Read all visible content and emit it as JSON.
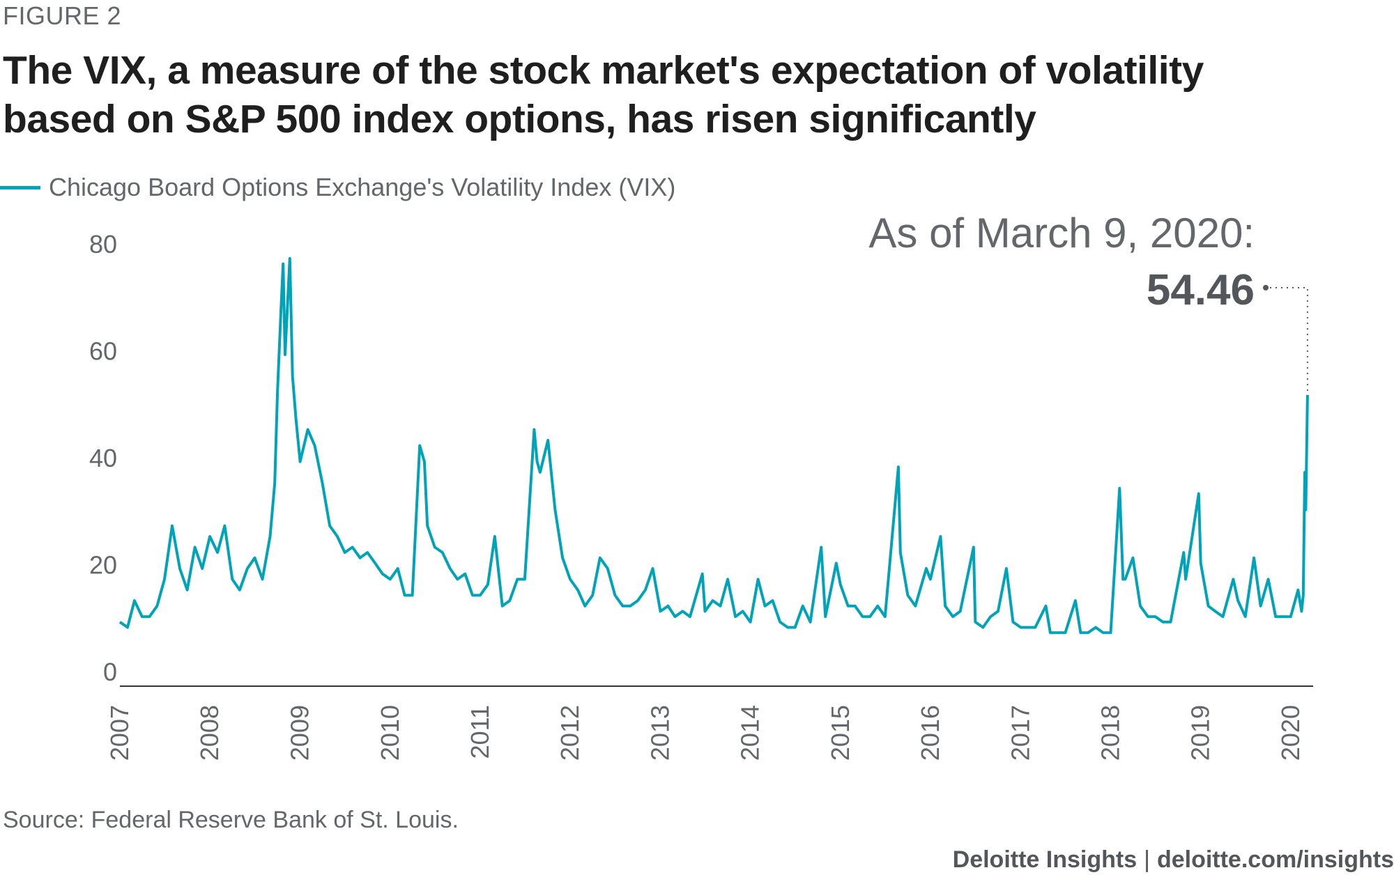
{
  "figure_label": "FIGURE 2",
  "title": "The VIX, a measure of the stock market's expectation of volatility based on S&P 500 index options, has risen significantly",
  "legend_label": "Chicago Board Options Exchange's Volatility Index (VIX)",
  "source": "Source: Federal Reserve Bank of St. Louis.",
  "footer": {
    "brand": "Deloitte Insights",
    "separator": "|",
    "url": "deloitte.com/insights"
  },
  "colors": {
    "series": "#00a3b8",
    "axis": "#333333",
    "text": "#63666a",
    "title": "#1f1f1f"
  },
  "chart_data": {
    "type": "line",
    "annotation": {
      "label": "As of March 9, 2020:",
      "value": "54.46",
      "x": "2020-03-09",
      "y": 54.46
    },
    "xlabel": "",
    "ylabel": "",
    "xlim": [
      "2007-01-01",
      "2020-04-01"
    ],
    "ylim": [
      0,
      85
    ],
    "yticks": [
      0,
      20,
      40,
      60,
      80
    ],
    "xticks": [
      "2007",
      "2008",
      "2009",
      "2010",
      "2011",
      "2012",
      "2013",
      "2014",
      "2015",
      "2016",
      "2017",
      "2018",
      "2019",
      "2020"
    ],
    "grid": false,
    "legend_position": "top-left",
    "series": [
      {
        "name": "Chicago Board Options Exchange's Volatility Index (VIX)",
        "points": [
          [
            "2007-01-01",
            12
          ],
          [
            "2007-02-01",
            11
          ],
          [
            "2007-03-01",
            16
          ],
          [
            "2007-04-01",
            13
          ],
          [
            "2007-05-01",
            13
          ],
          [
            "2007-06-01",
            15
          ],
          [
            "2007-07-01",
            20
          ],
          [
            "2007-08-01",
            30
          ],
          [
            "2007-09-01",
            22
          ],
          [
            "2007-10-01",
            18
          ],
          [
            "2007-11-01",
            26
          ],
          [
            "2007-12-01",
            22
          ],
          [
            "2008-01-01",
            28
          ],
          [
            "2008-02-01",
            25
          ],
          [
            "2008-03-01",
            30
          ],
          [
            "2008-04-01",
            20
          ],
          [
            "2008-05-01",
            18
          ],
          [
            "2008-06-01",
            22
          ],
          [
            "2008-07-01",
            24
          ],
          [
            "2008-08-01",
            20
          ],
          [
            "2008-09-01",
            28
          ],
          [
            "2008-09-20",
            38
          ],
          [
            "2008-10-01",
            55
          ],
          [
            "2008-10-15",
            70
          ],
          [
            "2008-10-24",
            79
          ],
          [
            "2008-11-01",
            62
          ],
          [
            "2008-11-20",
            80
          ],
          [
            "2008-12-01",
            58
          ],
          [
            "2008-12-15",
            50
          ],
          [
            "2009-01-01",
            42
          ],
          [
            "2009-02-01",
            48
          ],
          [
            "2009-03-01",
            45
          ],
          [
            "2009-04-01",
            38
          ],
          [
            "2009-05-01",
            30
          ],
          [
            "2009-06-01",
            28
          ],
          [
            "2009-07-01",
            25
          ],
          [
            "2009-08-01",
            26
          ],
          [
            "2009-09-01",
            24
          ],
          [
            "2009-10-01",
            25
          ],
          [
            "2009-11-01",
            23
          ],
          [
            "2009-12-01",
            21
          ],
          [
            "2010-01-01",
            20
          ],
          [
            "2010-02-01",
            22
          ],
          [
            "2010-03-01",
            17
          ],
          [
            "2010-04-01",
            17
          ],
          [
            "2010-05-01",
            45
          ],
          [
            "2010-05-20",
            42
          ],
          [
            "2010-06-01",
            30
          ],
          [
            "2010-07-01",
            26
          ],
          [
            "2010-08-01",
            25
          ],
          [
            "2010-09-01",
            22
          ],
          [
            "2010-10-01",
            20
          ],
          [
            "2010-11-01",
            21
          ],
          [
            "2010-12-01",
            17
          ],
          [
            "2011-01-01",
            17
          ],
          [
            "2011-02-01",
            19
          ],
          [
            "2011-03-01",
            28
          ],
          [
            "2011-04-01",
            15
          ],
          [
            "2011-05-01",
            16
          ],
          [
            "2011-06-01",
            20
          ],
          [
            "2011-07-01",
            20
          ],
          [
            "2011-08-08",
            48
          ],
          [
            "2011-08-20",
            42
          ],
          [
            "2011-09-01",
            40
          ],
          [
            "2011-10-03",
            46
          ],
          [
            "2011-11-01",
            33
          ],
          [
            "2011-12-01",
            24
          ],
          [
            "2012-01-01",
            20
          ],
          [
            "2012-02-01",
            18
          ],
          [
            "2012-03-01",
            15
          ],
          [
            "2012-04-01",
            17
          ],
          [
            "2012-05-01",
            24
          ],
          [
            "2012-06-01",
            22
          ],
          [
            "2012-07-01",
            17
          ],
          [
            "2012-08-01",
            15
          ],
          [
            "2012-09-01",
            15
          ],
          [
            "2012-10-01",
            16
          ],
          [
            "2012-11-01",
            18
          ],
          [
            "2012-12-01",
            22
          ],
          [
            "2013-01-01",
            14
          ],
          [
            "2013-02-01",
            15
          ],
          [
            "2013-03-01",
            13
          ],
          [
            "2013-04-01",
            14
          ],
          [
            "2013-05-01",
            13
          ],
          [
            "2013-06-20",
            21
          ],
          [
            "2013-07-01",
            14
          ],
          [
            "2013-08-01",
            16
          ],
          [
            "2013-09-01",
            15
          ],
          [
            "2013-10-01",
            20
          ],
          [
            "2013-11-01",
            13
          ],
          [
            "2013-12-01",
            14
          ],
          [
            "2014-01-01",
            12
          ],
          [
            "2014-02-01",
            20
          ],
          [
            "2014-03-01",
            15
          ],
          [
            "2014-04-01",
            16
          ],
          [
            "2014-05-01",
            12
          ],
          [
            "2014-06-01",
            11
          ],
          [
            "2014-07-01",
            11
          ],
          [
            "2014-08-01",
            15
          ],
          [
            "2014-09-01",
            12
          ],
          [
            "2014-10-15",
            26
          ],
          [
            "2014-11-01",
            13
          ],
          [
            "2014-12-15",
            23
          ],
          [
            "2015-01-01",
            19
          ],
          [
            "2015-02-01",
            15
          ],
          [
            "2015-03-01",
            15
          ],
          [
            "2015-04-01",
            13
          ],
          [
            "2015-05-01",
            13
          ],
          [
            "2015-06-01",
            15
          ],
          [
            "2015-07-01",
            13
          ],
          [
            "2015-08-24",
            41
          ],
          [
            "2015-09-01",
            25
          ],
          [
            "2015-10-01",
            17
          ],
          [
            "2015-11-01",
            15
          ],
          [
            "2015-12-15",
            22
          ],
          [
            "2016-01-01",
            20
          ],
          [
            "2016-02-11",
            28
          ],
          [
            "2016-03-01",
            15
          ],
          [
            "2016-04-01",
            13
          ],
          [
            "2016-05-01",
            14
          ],
          [
            "2016-06-24",
            26
          ],
          [
            "2016-07-01",
            12
          ],
          [
            "2016-08-01",
            11
          ],
          [
            "2016-09-01",
            13
          ],
          [
            "2016-10-01",
            14
          ],
          [
            "2016-11-04",
            22
          ],
          [
            "2016-12-01",
            12
          ],
          [
            "2017-01-01",
            11
          ],
          [
            "2017-02-01",
            11
          ],
          [
            "2017-03-01",
            11
          ],
          [
            "2017-04-13",
            15
          ],
          [
            "2017-05-01",
            10
          ],
          [
            "2017-06-01",
            10
          ],
          [
            "2017-07-01",
            10
          ],
          [
            "2017-08-11",
            16
          ],
          [
            "2017-09-01",
            10
          ],
          [
            "2017-10-01",
            10
          ],
          [
            "2017-11-01",
            11
          ],
          [
            "2017-12-01",
            10
          ],
          [
            "2018-01-01",
            10
          ],
          [
            "2018-02-06",
            37
          ],
          [
            "2018-02-20",
            20
          ],
          [
            "2018-03-01",
            20
          ],
          [
            "2018-04-01",
            24
          ],
          [
            "2018-05-01",
            15
          ],
          [
            "2018-06-01",
            13
          ],
          [
            "2018-07-01",
            13
          ],
          [
            "2018-08-01",
            12
          ],
          [
            "2018-09-01",
            12
          ],
          [
            "2018-10-24",
            25
          ],
          [
            "2018-11-01",
            20
          ],
          [
            "2018-12-24",
            36
          ],
          [
            "2019-01-01",
            23
          ],
          [
            "2019-02-01",
            15
          ],
          [
            "2019-03-01",
            14
          ],
          [
            "2019-04-01",
            13
          ],
          [
            "2019-05-13",
            20
          ],
          [
            "2019-06-01",
            16
          ],
          [
            "2019-07-01",
            13
          ],
          [
            "2019-08-05",
            24
          ],
          [
            "2019-09-01",
            15
          ],
          [
            "2019-10-02",
            20
          ],
          [
            "2019-11-01",
            13
          ],
          [
            "2019-12-01",
            13
          ],
          [
            "2020-01-01",
            13
          ],
          [
            "2020-01-31",
            18
          ],
          [
            "2020-02-14",
            14
          ],
          [
            "2020-02-21",
            17
          ],
          [
            "2020-02-27",
            40
          ],
          [
            "2020-03-02",
            33
          ],
          [
            "2020-03-09",
            54.46
          ]
        ]
      }
    ]
  }
}
